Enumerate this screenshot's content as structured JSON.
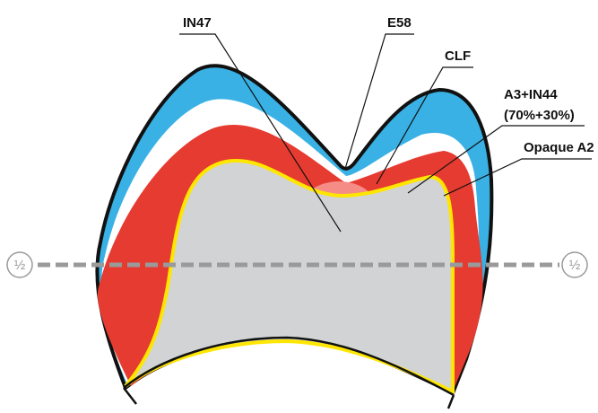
{
  "labels": {
    "in47": "IN47",
    "e58": "E58",
    "clf": "CLF",
    "a3_in44": "A3+IN44",
    "ratio": "(70%+30%)",
    "opaque": "Opaque A2"
  },
  "markers": {
    "left": "½",
    "right": "½"
  }
}
